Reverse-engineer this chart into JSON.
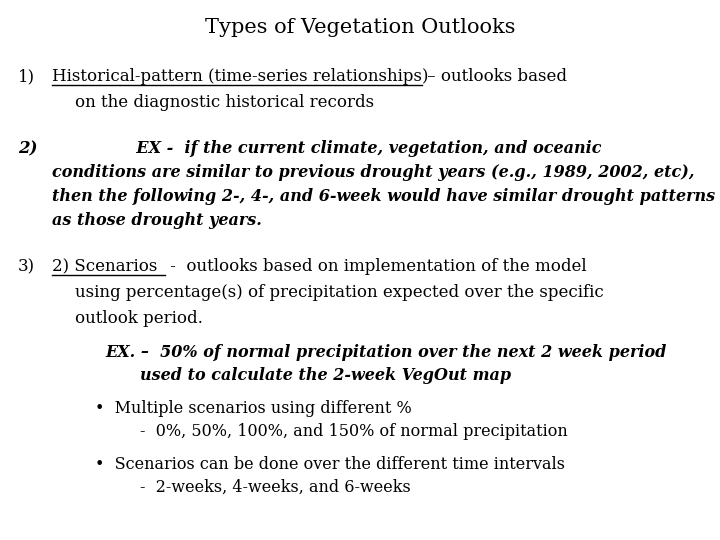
{
  "title": "Types of Vegetation Outlooks",
  "background_color": "#ffffff",
  "text_color": "#000000",
  "item1_num": "1)",
  "item1_underlined": "Historical-pattern (time-series relationships)",
  "item1_rest": " – outlooks based",
  "item1_line2": "on the diagnostic historical records",
  "item2_num": "2)",
  "item2_l1": "               EX -  if the current climate, vegetation, and oceanic",
  "item2_l2": "conditions are similar to previous drought years (e.g., 1989, 2002, etc),",
  "item2_l3": "then the following 2-, 4-, and 6-week would have similar drought patterns",
  "item2_l4": "as those drought years.",
  "item3_num": "3)",
  "item3_underlined": "2) Scenarios",
  "item3_rest": " -  outlooks based on implementation of the model",
  "item3_line2": "using percentage(s) of precipitation expected over the specific",
  "item3_line3": "outlook period.",
  "ex_line1": "EX. –  50% of normal precipitation over the next 2 week period",
  "ex_line2": "used to calculate the 2-week VegOut map",
  "bullet1": "•  Multiple scenarios using different %",
  "bullet1_sub": "-  0%, 50%, 100%, and 150% of normal precipitation",
  "bullet2": "•  Scenarios can be done over the different time intervals",
  "bullet2_sub": "-  2-weeks, 4-weeks, and 6-weeks",
  "fs_title": 15,
  "fs_body": 12,
  "fs_italic": 11.5
}
